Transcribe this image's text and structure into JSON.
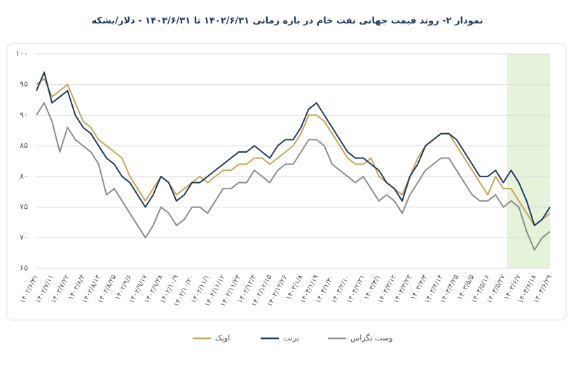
{
  "chart_data": {
    "type": "line",
    "title": "نمودار ۲- روند قیمت جهانی نفت خام در بازه زمانی ۱۴۰۲/۶/۳۱ تا ۱۴۰۳/۶/۳۱ - دلار/بشکه",
    "categories": [
      "۱۴۰۲/۶/۳۱",
      null,
      "۱۴۰۲/۷/۱۱",
      null,
      "۱۴۰۲/۷/۲۲",
      null,
      "۱۴۰۲/۸/۳",
      null,
      "۱۴۰۲/۸/۱۴",
      null,
      "۱۴۰۲/۸/۲۵",
      null,
      "۱۴۰۲/۹/۶",
      null,
      "۱۴۰۲/۹/۱۷",
      null,
      "۱۴۰۲/۹/۲۸",
      null,
      "۱۴۰۲/۱۰/۹",
      null,
      "۱۴۰۲/۱۰/۲۰",
      null,
      "۱۴۰۲/۱۱/۱",
      null,
      "۱۴۰۲/۱۱/۱۲",
      null,
      "۱۴۰۲/۱۱/۲۳",
      null,
      "۱۴۰۲/۱۲/۴",
      null,
      "۱۴۰۲/۱۲/۱۵",
      null,
      "۱۴۰۲/۱۲/۲۶",
      null,
      "۱۴۰۳/۱/۸",
      null,
      "۱۴۰۳/۱/۱۹",
      null,
      "۱۴۰۳/۱/۳۰",
      null,
      "۱۴۰۳/۲/۱۰",
      null,
      "۱۴۰۳/۲/۲۱",
      null,
      "۱۴۰۳/۳/۱",
      null,
      "۱۴۰۳/۳/۱۲",
      null,
      "۱۴۰۳/۳/۲۳",
      null,
      "۱۴۰۳/۴/۳",
      null,
      "۱۴۰۳/۴/۱۴",
      null,
      "۱۴۰۳/۴/۲۵",
      null,
      "۱۴۰۳/۵/۵",
      null,
      "۱۴۰۳/۵/۱۶",
      null,
      "۱۴۰۳/۵/۲۷",
      null,
      "۱۴۰۳/۶/۷",
      null,
      "۱۴۰۳/۶/۱۸",
      null,
      "۱۴۰۳/۶/۲۹"
    ],
    "series": [
      {
        "name": "اوپک",
        "color": "#c9a45a",
        "values": [
          95,
          96,
          93,
          94,
          95,
          92,
          89,
          88,
          86,
          85,
          84,
          83,
          80,
          78,
          76,
          78,
          80,
          79,
          77,
          78,
          79,
          80,
          79,
          80,
          81,
          81,
          82,
          82,
          83,
          83,
          82,
          83,
          84,
          85,
          87,
          90,
          90,
          89,
          87,
          85,
          83,
          82,
          82,
          83,
          80,
          79,
          78,
          77,
          80,
          83,
          85,
          86,
          87,
          87,
          85,
          83,
          81,
          79,
          77,
          80,
          78,
          78,
          76,
          74,
          72,
          73,
          74
        ]
      },
      {
        "name": "برنت",
        "color": "#1f3a5f",
        "values": [
          94,
          97,
          92,
          93,
          94,
          90,
          88,
          87,
          85,
          83,
          82,
          80,
          79,
          77,
          75,
          77,
          80,
          79,
          76,
          77,
          79,
          79,
          80,
          81,
          82,
          83,
          84,
          84,
          85,
          84,
          83,
          85,
          86,
          86,
          88,
          91,
          92,
          90,
          88,
          86,
          84,
          83,
          83,
          82,
          81,
          79,
          78,
          76,
          80,
          82,
          85,
          86,
          87,
          87,
          86,
          84,
          82,
          80,
          80,
          81,
          79,
          81,
          79,
          76,
          72,
          73,
          75
        ]
      },
      {
        "name": "وست تگزاس",
        "color": "#8c8c8c",
        "values": [
          90,
          92,
          89,
          84,
          88,
          86,
          85,
          84,
          82,
          77,
          78,
          76,
          74,
          72,
          70,
          72,
          75,
          74,
          72,
          73,
          75,
          75,
          74,
          76,
          78,
          78,
          79,
          79,
          81,
          80,
          79,
          81,
          82,
          82,
          84,
          86,
          86,
          85,
          82,
          81,
          80,
          79,
          80,
          78,
          76,
          77,
          76,
          74,
          77,
          79,
          81,
          82,
          83,
          83,
          81,
          79,
          77,
          76,
          76,
          77,
          75,
          76,
          75,
          71,
          68,
          70,
          71
        ]
      }
    ],
    "ylim": [
      65,
      100
    ],
    "yticks": [
      {
        "value": 65,
        "label": "۶۵"
      },
      {
        "value": 70,
        "label": "۷۰"
      },
      {
        "value": 75,
        "label": "۷۵"
      },
      {
        "value": 80,
        "label": "۸۰"
      },
      {
        "value": 85,
        "label": "۸۵"
      },
      {
        "value": 90,
        "label": "۹۰"
      },
      {
        "value": 95,
        "label": "۹۵"
      },
      {
        "value": 100,
        "label": "۱۰۰"
      }
    ],
    "grid": true,
    "legend": "bottom",
    "highlight": {
      "from": "۱۴۰۳/۶/۷",
      "color": "#e4f3da"
    }
  }
}
